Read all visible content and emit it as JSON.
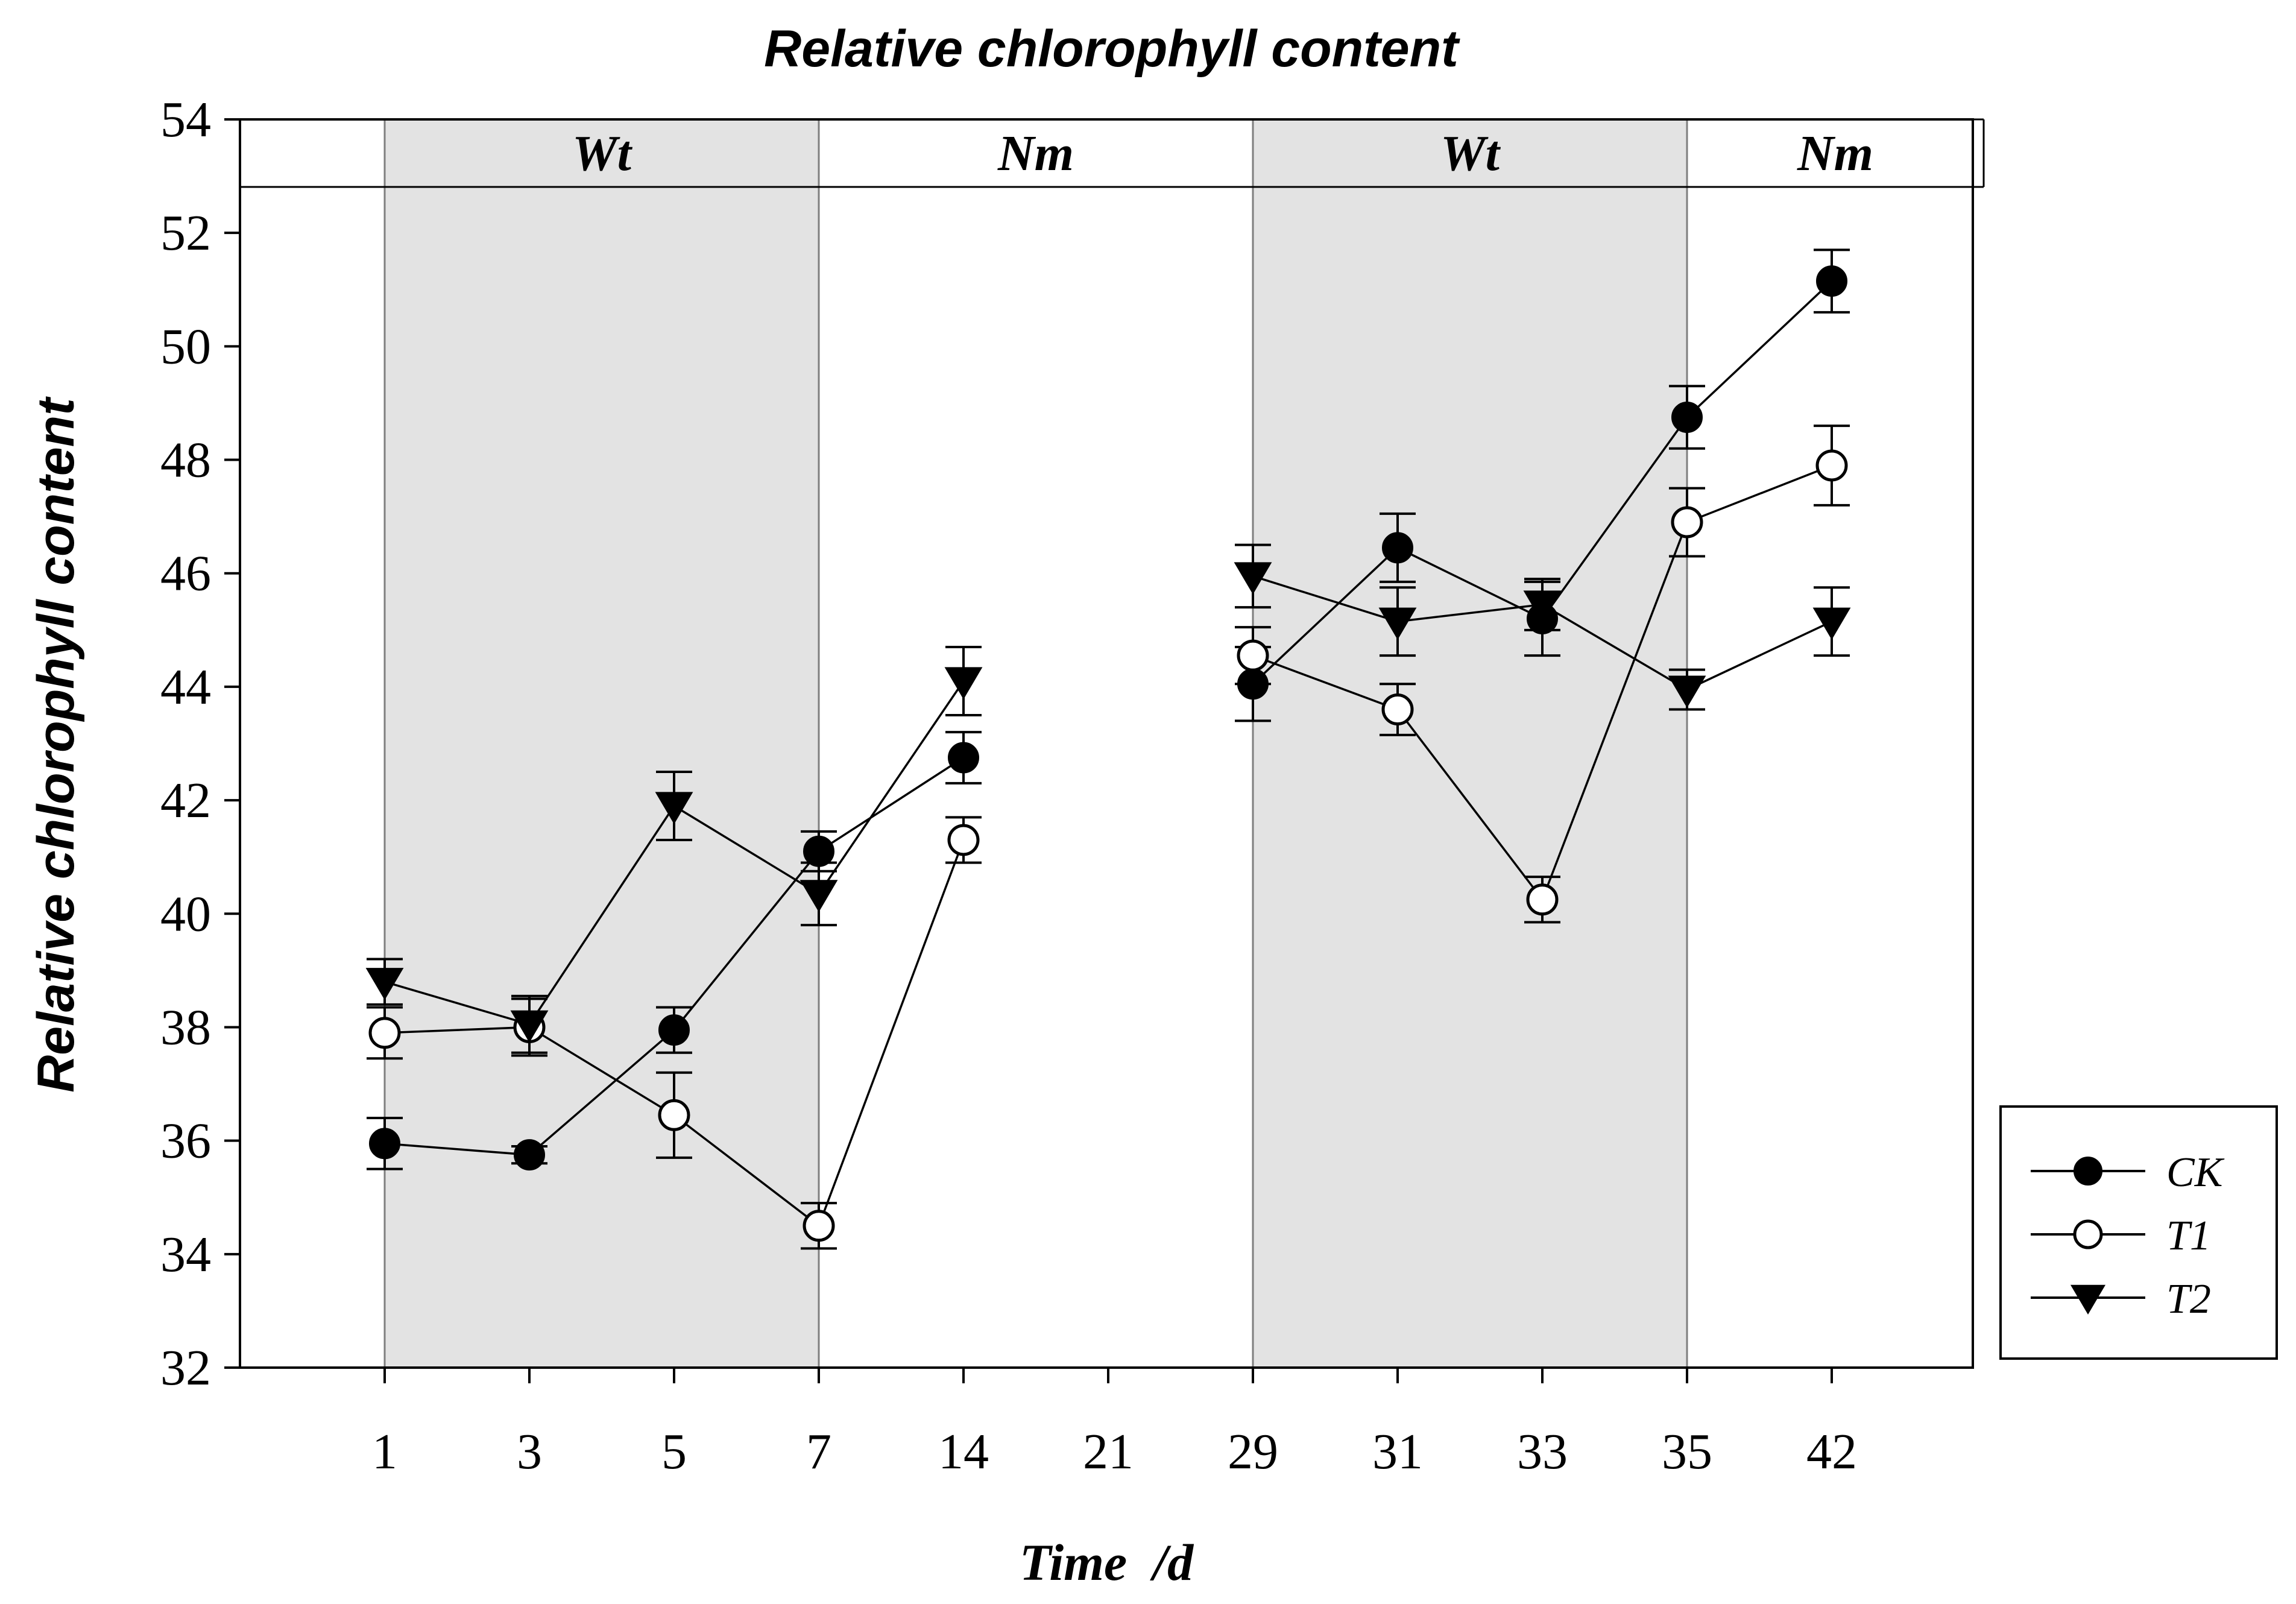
{
  "chart_data": {
    "type": "line",
    "title": "Relative chlorophyll content",
    "xlabel": "Time  /d",
    "ylabel": "Relative chlorophyll content",
    "categories": [
      "1",
      "3",
      "5",
      "7",
      "14",
      "21",
      "29",
      "31",
      "33",
      "35",
      "42"
    ],
    "ylim": [
      32,
      54
    ],
    "yticks": [
      32,
      34,
      36,
      38,
      40,
      42,
      44,
      46,
      48,
      50,
      52,
      54
    ],
    "grid": false,
    "legend_position": "right",
    "phases": [
      {
        "label": "Wt",
        "from": "1",
        "to": "7",
        "shaded": true
      },
      {
        "label": "Nm",
        "from": "7",
        "to": "29",
        "shaded": false
      },
      {
        "label": "Wt",
        "from": "29",
        "to": "35",
        "shaded": true
      },
      {
        "label": "Nm",
        "from": "35",
        "to": "end",
        "shaded": false
      }
    ],
    "series": [
      {
        "name": "CK",
        "marker": "filled-circle",
        "values": [
          35.95,
          35.75,
          37.95,
          41.1,
          42.75,
          null,
          44.05,
          46.45,
          45.2,
          48.75,
          51.15
        ],
        "errors": [
          0.45,
          0.15,
          0.4,
          0.35,
          0.45,
          null,
          0.65,
          0.6,
          0.65,
          0.55,
          0.55
        ]
      },
      {
        "name": "T1",
        "marker": "open-circle",
        "values": [
          37.9,
          38.0,
          36.45,
          34.5,
          41.3,
          null,
          44.55,
          43.6,
          40.25,
          46.9,
          47.9
        ],
        "errors": [
          0.45,
          0.5,
          0.75,
          0.4,
          0.4,
          null,
          0.5,
          0.45,
          0.4,
          0.6,
          0.7
        ]
      },
      {
        "name": "T2",
        "marker": "filled-triangle-down",
        "values": [
          38.8,
          38.05,
          41.9,
          40.35,
          44.1,
          null,
          45.95,
          45.15,
          45.45,
          43.95,
          45.15
        ],
        "errors": [
          0.4,
          0.5,
          0.6,
          0.55,
          0.6,
          null,
          0.55,
          0.6,
          0.45,
          0.35,
          0.6
        ]
      }
    ]
  },
  "colors": {
    "line": "#000000",
    "shade": "#e3e3e3",
    "divider": "#7f7f7f",
    "background": "#ffffff"
  }
}
